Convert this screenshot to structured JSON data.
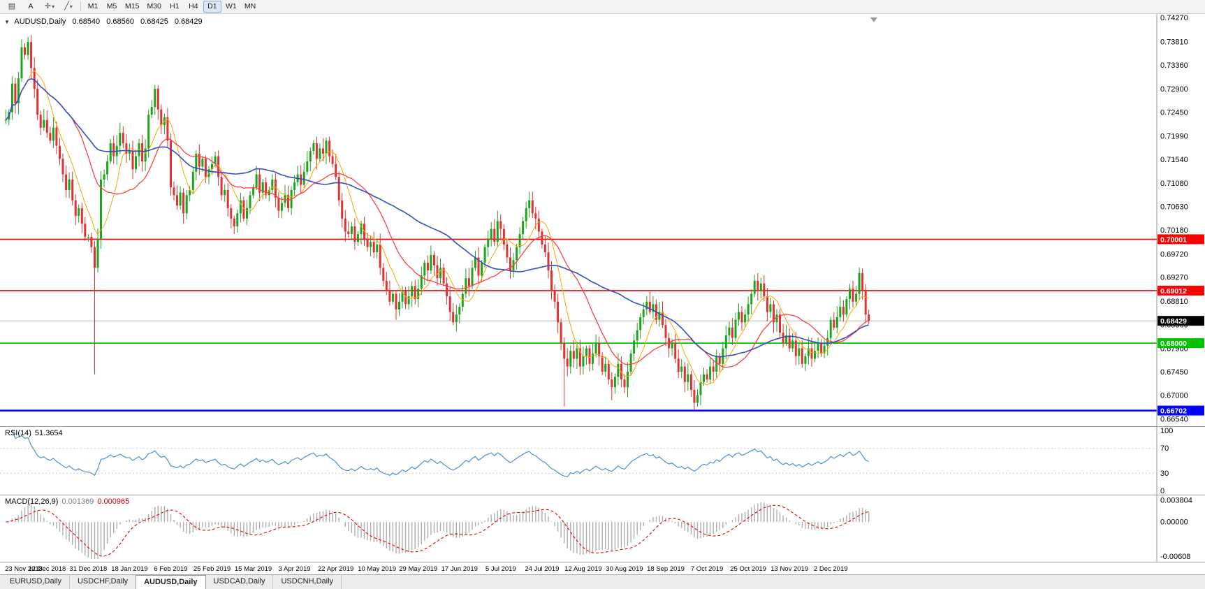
{
  "toolbar": {
    "chart_icon": "▤",
    "text_tool": "A",
    "cursor_tool": "✛",
    "draw_tool": "╱",
    "dropdown_caret": "▾",
    "timeframes": [
      "M1",
      "M5",
      "M15",
      "M30",
      "H1",
      "H4",
      "D1",
      "W1",
      "MN"
    ],
    "active_timeframe": "D1"
  },
  "symbol_info": {
    "collapse_icon": "▼",
    "symbol": "AUDUSD,Daily",
    "open": "0.68540",
    "high": "0.68560",
    "low": "0.68425",
    "close": "0.68429"
  },
  "indicators": {
    "rsi_label": "RSI(14)",
    "rsi_value": "51.3654",
    "macd_label": "MACD(12,26,9)",
    "macd_main_value": "0.001369",
    "macd_signal_value": "0.000965"
  },
  "tabs": [
    "EURUSD,Daily",
    "USDCHF,Daily",
    "AUDUSD,Daily",
    "USDCAD,Daily",
    "USDCNH,Daily"
  ],
  "active_tab": "AUDUSD,Daily",
  "chart_data": {
    "type": "candlestick",
    "symbol": "AUDUSD",
    "timeframe": "Daily",
    "first_open": 0.723,
    "closes": [
      0.723,
      0.7245,
      0.73,
      0.7262,
      0.731,
      0.737,
      0.7355,
      0.738,
      0.733,
      0.729,
      0.724,
      0.7215,
      0.723,
      0.7205,
      0.719,
      0.7215,
      0.718,
      0.7155,
      0.7125,
      0.7095,
      0.7115,
      0.7075,
      0.7045,
      0.706,
      0.703,
      0.7005,
      0.7005,
      0.6985,
      0.6945,
      0.7,
      0.7115,
      0.7125,
      0.715,
      0.7185,
      0.716,
      0.718,
      0.7205,
      0.7185,
      0.7165,
      0.717,
      0.7135,
      0.716,
      0.7185,
      0.715,
      0.7175,
      0.724,
      0.7255,
      0.729,
      0.725,
      0.722,
      0.7235,
      0.719,
      0.71,
      0.7085,
      0.7065,
      0.709,
      0.705,
      0.7085,
      0.7095,
      0.713,
      0.7165,
      0.714,
      0.7155,
      0.712,
      0.7135,
      0.7145,
      0.716,
      0.712,
      0.7085,
      0.7095,
      0.706,
      0.704,
      0.7025,
      0.705,
      0.7075,
      0.704,
      0.706,
      0.7085,
      0.71,
      0.7125,
      0.709,
      0.711,
      0.7085,
      0.7095,
      0.7115,
      0.708,
      0.7055,
      0.707,
      0.7085,
      0.706,
      0.7095,
      0.711,
      0.7125,
      0.7105,
      0.713,
      0.715,
      0.717,
      0.7185,
      0.7155,
      0.7175,
      0.7165,
      0.719,
      0.716,
      0.7145,
      0.712,
      0.7075,
      0.704,
      0.7015,
      0.701,
      0.7025,
      0.6995,
      0.701,
      0.703,
      0.7,
      0.6985,
      0.6995,
      0.6975,
      0.699,
      0.6945,
      0.692,
      0.69,
      0.688,
      0.6895,
      0.6865,
      0.688,
      0.69,
      0.6875,
      0.689,
      0.691,
      0.6885,
      0.6905,
      0.693,
      0.6955,
      0.694,
      0.697,
      0.695,
      0.6925,
      0.6945,
      0.6915,
      0.689,
      0.686,
      0.684,
      0.6855,
      0.687,
      0.6895,
      0.6925,
      0.691,
      0.6945,
      0.6965,
      0.693,
      0.6955,
      0.6985,
      0.7,
      0.702,
      0.6995,
      0.7035,
      0.702,
      0.699,
      0.6965,
      0.694,
      0.696,
      0.6985,
      0.701,
      0.7035,
      0.706,
      0.7075,
      0.705,
      0.704,
      0.7015,
      0.699,
      0.6975,
      0.694,
      0.69,
      0.688,
      0.684,
      0.68,
      0.677,
      0.6755,
      0.6785,
      0.677,
      0.679,
      0.6755,
      0.6775,
      0.679,
      0.676,
      0.678,
      0.68,
      0.6775,
      0.6745,
      0.676,
      0.673,
      0.6715,
      0.6735,
      0.676,
      0.673,
      0.6715,
      0.6745,
      0.678,
      0.6805,
      0.6825,
      0.685,
      0.6865,
      0.688,
      0.686,
      0.6875,
      0.6845,
      0.686,
      0.6835,
      0.681,
      0.679,
      0.68,
      0.677,
      0.6745,
      0.6755,
      0.6725,
      0.674,
      0.671,
      0.6685,
      0.67,
      0.6725,
      0.674,
      0.673,
      0.6755,
      0.6745,
      0.6775,
      0.676,
      0.679,
      0.6815,
      0.683,
      0.681,
      0.6845,
      0.686,
      0.684,
      0.6855,
      0.6875,
      0.6895,
      0.692,
      0.69,
      0.6915,
      0.689,
      0.686,
      0.6875,
      0.684,
      0.6855,
      0.682,
      0.68,
      0.6815,
      0.679,
      0.6805,
      0.6775,
      0.679,
      0.676,
      0.6775,
      0.679,
      0.677,
      0.6785,
      0.68,
      0.678,
      0.6795,
      0.681,
      0.6845,
      0.683,
      0.685,
      0.687,
      0.6855,
      0.6885,
      0.6905,
      0.688,
      0.6895,
      0.6935,
      0.69,
      0.6855,
      0.6843
    ],
    "wick_overrides": {
      "7": {
        "high": 0.739
      },
      "28": {
        "low": 0.674
      },
      "176": {
        "low": 0.6678
      },
      "191": {
        "low": 0.669
      },
      "217": {
        "low": 0.6671
      },
      "269": {
        "high": 0.6946
      }
    },
    "colors": {
      "up": "#1CA41C",
      "down": "#E03232",
      "background": "#FFFFFF",
      "separator": "#9a9a9a"
    },
    "price_scale": {
      "min": 0.664,
      "max": 0.7434,
      "ticks": [
        "0.74270",
        "0.73810",
        "0.73360",
        "0.72900",
        "0.72450",
        "0.71990",
        "0.71540",
        "0.71080",
        "0.70630",
        "0.70180",
        "0.69720",
        "0.69270",
        "0.68810",
        "0.68360",
        "0.67900",
        "0.67450",
        "0.67000",
        "0.66540"
      ]
    },
    "date_labels": [
      "23 Nov 2018",
      "12 Dec 2018",
      "31 Dec 2018",
      "18 Jan 2019",
      "6 Feb 2019",
      "25 Feb 2019",
      "15 Mar 2019",
      "3 Apr 2019",
      "22 Apr 2019",
      "10 May 2019",
      "29 May 2019",
      "17 Jun 2019",
      "5 Jul 2019",
      "24 Jul 2019",
      "12 Aug 2019",
      "30 Aug 2019",
      "18 Sep 2019",
      "7 Oct 2019",
      "25 Oct 2019",
      "13 Nov 2019",
      "2 Dec 2019"
    ],
    "label_every": 13,
    "moving_averages": [
      {
        "period": 8,
        "color": "#FFA500",
        "width": 1
      },
      {
        "period": 20,
        "color": "#FF4040",
        "width": 1.3
      },
      {
        "period": 50,
        "color": "#3050C0",
        "width": 1.6
      }
    ],
    "h_lines": [
      {
        "price": 0.70001,
        "label": "0.70001",
        "color": "#FF0000",
        "width": 1.6
      },
      {
        "price": 0.69012,
        "label": "0.69012",
        "color": "#FF0000",
        "width": 1.6
      },
      {
        "price": 0.68,
        "label": "0.68000",
        "color": "#00C300",
        "width": 1.8
      },
      {
        "price": 0.66702,
        "label": "0.66702",
        "color": "#0000FF",
        "width": 2.5
      }
    ],
    "current_price": {
      "value": 0.68429,
      "label": "0.68429",
      "box_color": "#000000",
      "line_color": "#B8B8B8"
    },
    "rsi": {
      "period": 14,
      "current": 51.3654,
      "color": "#4F8FD0",
      "levels": [
        70,
        30
      ],
      "range": [
        0,
        100
      ],
      "ticks": [
        "100",
        "70",
        "30",
        "0"
      ]
    },
    "macd": {
      "fast": 12,
      "slow": 26,
      "signal": 9,
      "current_main": 0.001369,
      "current_signal": 0.000965,
      "histogram_color": "#ADADAD",
      "signal_color": "#E00000",
      "scale": {
        "min": -0.0065,
        "max": 0.0042
      },
      "ticks": [
        "0.003804",
        "0.00000",
        "-0.00608"
      ]
    }
  }
}
